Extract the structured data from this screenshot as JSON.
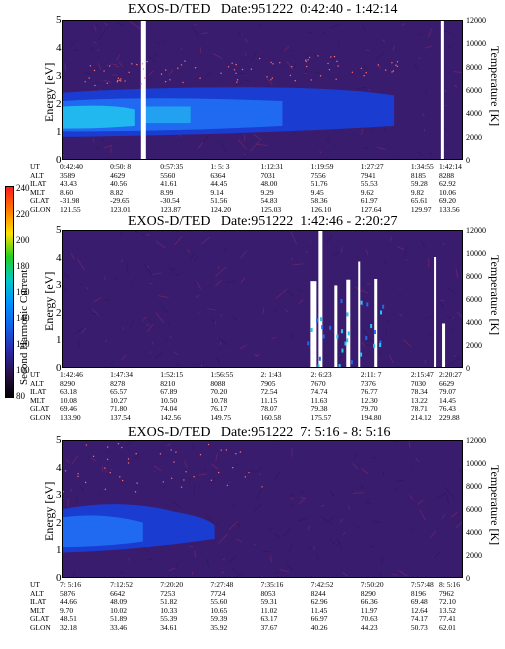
{
  "colorbar": {
    "label": "Second Harmonic Current",
    "ticks": [
      "240",
      "220",
      "200",
      "180",
      "160",
      "140",
      "120",
      "100",
      "80"
    ],
    "colors": [
      "#ff1a1a",
      "#ff7a00",
      "#ffe000",
      "#20d020",
      "#00c8c8",
      "#0090ff",
      "#1060e8",
      "#2a2aa8",
      "#2a1048",
      "#000000"
    ]
  },
  "chart_data": [
    {
      "type": "heatmap",
      "title": "EXOS-D/TED   Date:951222  0:42:40 - 1:42:14",
      "ylabel": "Energy [eV]",
      "y2label": "Temperature [K]",
      "ylim": [
        0,
        5
      ],
      "y2lim": [
        0,
        12000
      ],
      "yticks": [
        "0",
        "1",
        "2",
        "3",
        "4",
        "5"
      ],
      "y2ticks": [
        "0",
        "2000",
        "4000",
        "6000",
        "8000",
        "10000",
        "12000"
      ],
      "table_labels": [
        "UT",
        "ALT",
        "ILAT",
        "MLT",
        "GLAT",
        "GLON"
      ],
      "table": [
        [
          "0:42:40",
          "0:50: 8",
          "0:57:35",
          "1: 5: 3",
          "1:12:31",
          "1:19:59",
          "1:27:27",
          "1:34:55",
          "1:42:14"
        ],
        [
          "3589",
          "4629",
          "5560",
          "6364",
          "7031",
          "7556",
          "7941",
          "8185",
          "8288"
        ],
        [
          "43.43",
          "40.56",
          "41.61",
          "44.45",
          "48.00",
          "51.76",
          "55.53",
          "59.28",
          "62.92"
        ],
        [
          "8.60",
          "8.82",
          "8.99",
          "9.14",
          "9.29",
          "9.45",
          "9.62",
          "9.82",
          "10.06"
        ],
        [
          "-31.98",
          "-29.65",
          "-30.54",
          "51.56",
          "54.83",
          "58.36",
          "61.97",
          "65.61",
          "69.20"
        ],
        [
          "121.55",
          "123.01",
          "123.87",
          "124.20",
          "125.03",
          "126.10",
          "127.64",
          "129.97",
          "133.56"
        ]
      ]
    },
    {
      "type": "heatmap",
      "title": "EXOS-D/TED   Date:951222  1:42:46 - 2:20:27",
      "ylabel": "Energy [eV]",
      "y2label": "Temperature [K]",
      "ylim": [
        0,
        5
      ],
      "y2lim": [
        0,
        12000
      ],
      "yticks": [
        "0",
        "1",
        "2",
        "3",
        "4",
        "5"
      ],
      "y2ticks": [
        "0",
        "2000",
        "4000",
        "6000",
        "8000",
        "10000",
        "12000"
      ],
      "table_labels": [
        "UT",
        "ALT",
        "ILAT",
        "MLT",
        "GLAT",
        "GLON"
      ],
      "table": [
        [
          "1:42:46",
          "1:47:34",
          "1:52:15",
          "1:56:55",
          "2: 1:43",
          "2: 6:23",
          "2:11: 7",
          "2:15:47",
          "2:20:27"
        ],
        [
          "8290",
          "8278",
          "8210",
          "8088",
          "7905",
          "7670",
          "7376",
          "7030",
          "6629"
        ],
        [
          "63.18",
          "65.57",
          "67.89",
          "70.20",
          "72.54",
          "74.74",
          "76.77",
          "78.34",
          "79.07"
        ],
        [
          "10.08",
          "10.27",
          "10.50",
          "10.78",
          "11.15",
          "11.63",
          "12.30",
          "13.22",
          "14.45"
        ],
        [
          "69.46",
          "71.80",
          "74.04",
          "76.17",
          "78.07",
          "79.38",
          "79.70",
          "78.71",
          "76.43"
        ],
        [
          "133.90",
          "137.54",
          "142.56",
          "149.75",
          "160.58",
          "175.57",
          "194.80",
          "214.12",
          "229.88"
        ]
      ]
    },
    {
      "type": "heatmap",
      "title": "EXOS-D/TED   Date:951222  7: 5:16 - 8: 5:16",
      "ylabel": "Energy [eV]",
      "y2label": "Temperature [K]",
      "ylim": [
        0,
        5
      ],
      "y2lim": [
        0,
        12000
      ],
      "yticks": [
        "0",
        "1",
        "2",
        "3",
        "4",
        "5"
      ],
      "y2ticks": [
        "0",
        "2000",
        "4000",
        "6000",
        "8000",
        "10000",
        "12000"
      ],
      "table_labels": [
        "UT",
        "ALT",
        "ILAT",
        "MLT",
        "GLAT",
        "GLON"
      ],
      "table": [
        [
          "7: 5:16",
          "7:12:52",
          "7:20:20",
          "7:27:48",
          "7:35:16",
          "7:42:52",
          "7:50:20",
          "7:57:48",
          "8: 5:16"
        ],
        [
          "5876",
          "6642",
          "7253",
          "7724",
          "8053",
          "8244",
          "8290",
          "8196",
          "7962"
        ],
        [
          "44.66",
          "48.09",
          "51.82",
          "55.60",
          "59.31",
          "62.96",
          "66.36",
          "69.48",
          "72.10"
        ],
        [
          "9.70",
          "10.02",
          "10.33",
          "10.65",
          "11.02",
          "11.45",
          "11.97",
          "12.64",
          "13.52"
        ],
        [
          "48.51",
          "51.89",
          "55.39",
          "59.39",
          "63.17",
          "66.97",
          "70.63",
          "74.17",
          "77.41"
        ],
        [
          "32.18",
          "33.46",
          "34.61",
          "35.92",
          "37.67",
          "40.26",
          "44.23",
          "50.73",
          "62.01"
        ]
      ]
    }
  ]
}
